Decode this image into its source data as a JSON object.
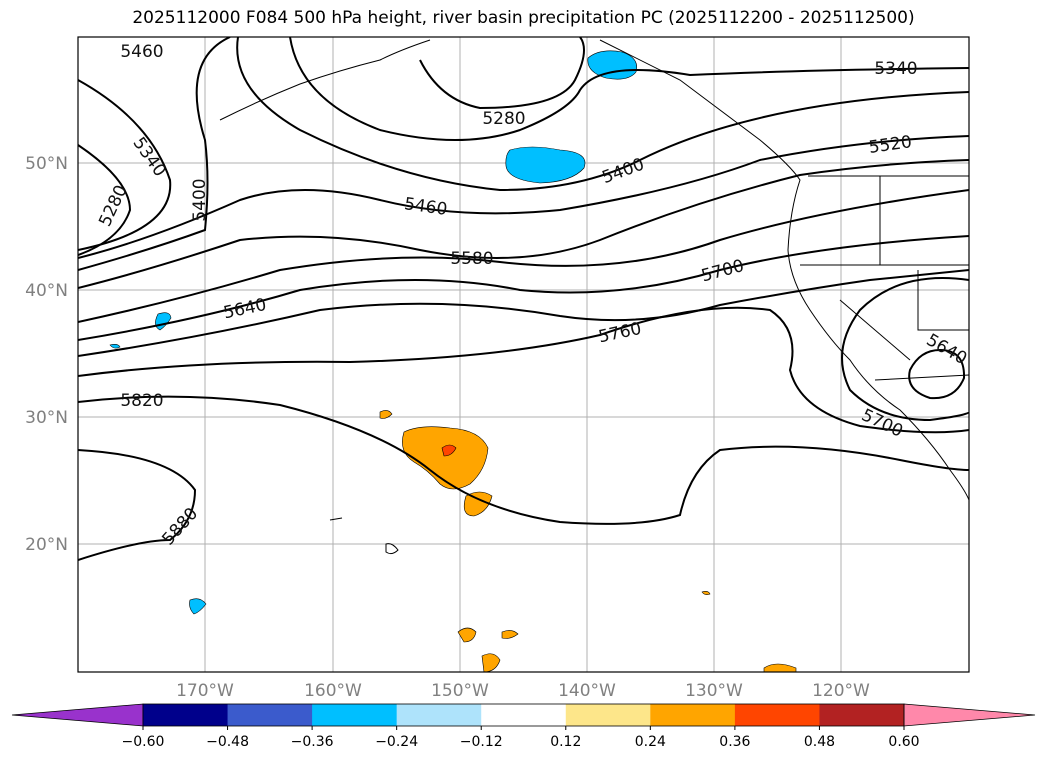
{
  "title": "2025112000 F084 500 hPa height, river basin precipitation PC (2025112200 - 2025112500)",
  "latitude_labels": [
    "50°N",
    "40°N",
    "30°N",
    "20°N"
  ],
  "longitude_labels": [
    "170°W",
    "160°W",
    "150°W",
    "140°W",
    "130°W",
    "120°W"
  ],
  "contour_labels": [
    "5460",
    "5340",
    "5280",
    "5400",
    "5280",
    "5400",
    "5340",
    "5520",
    "5460",
    "5580",
    "5700",
    "5640",
    "5760",
    "5640",
    "5820",
    "5700",
    "5880"
  ],
  "colorbar": {
    "ticks": [
      "−0.60",
      "−0.48",
      "−0.36",
      "−0.24",
      "−0.12",
      "0.12",
      "0.24",
      "0.36",
      "0.48",
      "0.60"
    ],
    "colors": [
      "#9932cc",
      "#00008b",
      "#3b5bcc",
      "#00bfff",
      "#aee3fb",
      "#ffffff",
      "#fde68a",
      "#ffa500",
      "#ff4500",
      "#b22222",
      "#ff88aa",
      "#ff88aa"
    ]
  },
  "colors": {
    "positive_precip": "#ffa500",
    "strong_positive_precip": "#ff4500",
    "negative_precip": "#00bfff",
    "light_negative_precip": "#aee3fb",
    "contour": "#000000",
    "grid": "#b0b0b0"
  }
}
